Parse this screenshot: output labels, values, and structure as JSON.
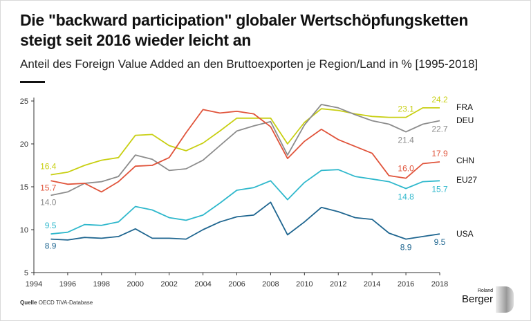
{
  "title_line1": "Die \"backward participation\" globaler Wertschöpfungsketten",
  "title_line2": "steigt seit 2016 wieder leicht an",
  "subtitle": "Anteil des Foreign Value Added an den Bruttoexporten je Region/Land in % [1995-2018]",
  "source_label": "Quelle",
  "source_text": "OECD TiVA-Database",
  "logo_text": "Roland Berger",
  "chart_data": {
    "type": "line",
    "x": [
      1995,
      1996,
      1997,
      1998,
      1999,
      2000,
      2001,
      2002,
      2003,
      2004,
      2005,
      2006,
      2007,
      2008,
      2009,
      2010,
      2011,
      2012,
      2013,
      2014,
      2015,
      2016,
      2017,
      2018
    ],
    "xlim": [
      1994,
      2018
    ],
    "ylim": [
      5,
      25
    ],
    "xticks": [
      1994,
      1996,
      1998,
      2000,
      2002,
      2004,
      2006,
      2008,
      2010,
      2012,
      2014,
      2016,
      2018
    ],
    "yticks": [
      5,
      10,
      15,
      20,
      25
    ],
    "grid": false,
    "legend": "right, labels at line ends",
    "series": [
      {
        "name": "FRA",
        "color": "#c8cf12",
        "values": [
          16.4,
          16.7,
          17.5,
          18.1,
          18.4,
          21.0,
          21.1,
          19.8,
          19.2,
          20.1,
          21.5,
          23.0,
          23.0,
          23.0,
          20.0,
          22.5,
          24.1,
          23.9,
          23.5,
          23.2,
          23.1,
          23.1,
          24.2,
          24.2
        ],
        "labels": [
          {
            "year": 1995,
            "text": "16.4"
          },
          {
            "year": 2016,
            "text": "23.1"
          },
          {
            "year": 2018,
            "text": "24.2"
          }
        ]
      },
      {
        "name": "DEU",
        "color": "#8c8c8c",
        "values": [
          14.0,
          14.4,
          15.4,
          15.6,
          16.2,
          18.7,
          18.2,
          16.9,
          17.1,
          18.1,
          19.8,
          21.5,
          22.1,
          22.6,
          18.7,
          22.2,
          24.6,
          24.2,
          23.4,
          22.7,
          22.3,
          21.4,
          22.3,
          22.7
        ],
        "labels": [
          {
            "year": 1995,
            "text": "14.0"
          },
          {
            "year": 2016,
            "text": "21.4"
          },
          {
            "year": 2018,
            "text": "22.7"
          }
        ]
      },
      {
        "name": "CHN",
        "color": "#e0533a",
        "values": [
          15.7,
          15.3,
          15.4,
          14.4,
          15.6,
          17.4,
          17.5,
          18.4,
          21.3,
          24.0,
          23.6,
          23.8,
          23.5,
          22.0,
          18.3,
          20.3,
          21.7,
          20.5,
          19.7,
          18.9,
          16.3,
          16.0,
          17.7,
          17.9
        ],
        "labels": [
          {
            "year": 1995,
            "text": "15.7"
          },
          {
            "year": 2016,
            "text": "16.0"
          },
          {
            "year": 2018,
            "text": "17.9"
          }
        ]
      },
      {
        "name": "EU27",
        "color": "#2fb8cc",
        "values": [
          9.5,
          9.7,
          10.6,
          10.5,
          10.9,
          12.7,
          12.3,
          11.4,
          11.1,
          11.7,
          13.1,
          14.6,
          14.9,
          15.7,
          13.5,
          15.5,
          16.9,
          17.0,
          16.2,
          15.9,
          15.6,
          14.8,
          15.6,
          15.7
        ],
        "labels": [
          {
            "year": 1995,
            "text": "9.5"
          },
          {
            "year": 2016,
            "text": "14.8"
          },
          {
            "year": 2018,
            "text": "15.7"
          }
        ]
      },
      {
        "name": "USA",
        "color": "#1f6690",
        "values": [
          8.9,
          8.8,
          9.1,
          9.0,
          9.2,
          10.1,
          9.0,
          9.0,
          8.9,
          10.0,
          10.9,
          11.5,
          11.7,
          13.2,
          9.4,
          10.9,
          12.6,
          12.1,
          11.4,
          11.2,
          9.6,
          8.9,
          9.2,
          9.5
        ],
        "labels": [
          {
            "year": 1995,
            "text": "8.9"
          },
          {
            "year": 2016,
            "text": "8.9"
          },
          {
            "year": 2018,
            "text": "9.5"
          }
        ]
      }
    ]
  }
}
